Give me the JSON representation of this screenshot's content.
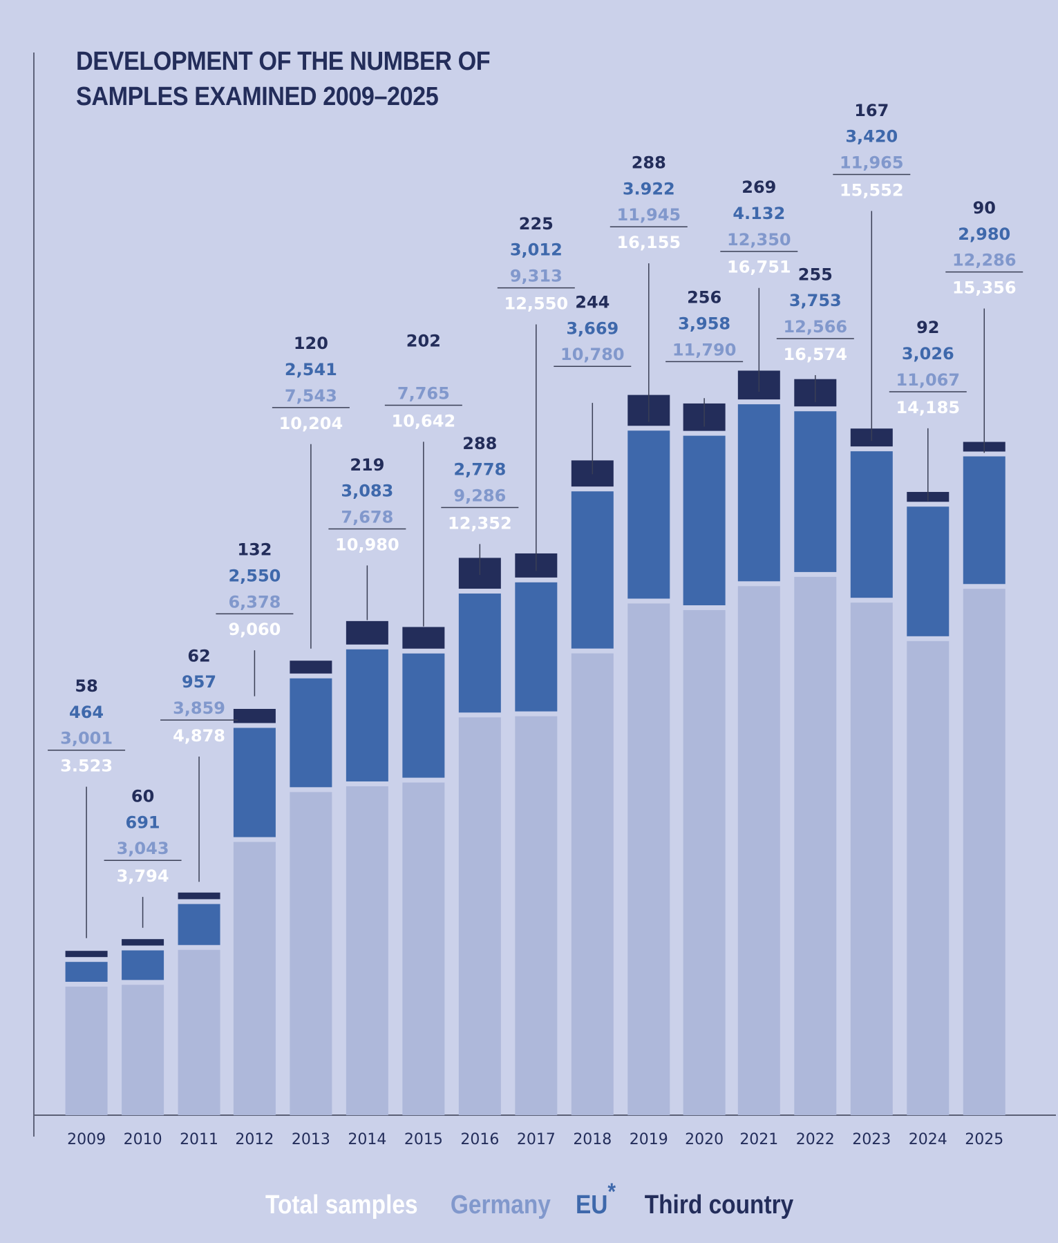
{
  "title_lines": [
    "DEVELOPMENT OF THE NUMBER OF",
    "SAMPLES EXAMINED 2009–2025"
  ],
  "legend": {
    "total": "Total samples",
    "germany": "Germany",
    "eu": "EU",
    "eu_marker": "*",
    "third": "Third country"
  },
  "colors": {
    "background": "#cbd1ea",
    "third_country": "#232d5a",
    "eu": "#3e68ab",
    "germany_bar": "#aeb8da",
    "germany_label": "#8198cc",
    "total_label": "#ffffff"
  },
  "chart_data": {
    "type": "bar",
    "stacked": true,
    "title": "DEVELOPMENT OF THE NUMBER OF SAMPLES EXAMINED 2009–2025",
    "xlabel": "",
    "ylabel": "",
    "grid": false,
    "legend_position": "bottom",
    "categories": [
      "2009",
      "2010",
      "2011",
      "2012",
      "2013",
      "2014",
      "2015",
      "2016",
      "2017",
      "2018",
      "2019",
      "2020",
      "2021",
      "2022",
      "2023",
      "2024",
      "2025"
    ],
    "series": [
      {
        "name": "Germany",
        "values": [
          3001,
          3043,
          3859,
          6378,
          7543,
          7678,
          7765,
          9286,
          9313,
          10780,
          11945,
          11790,
          12350,
          12566,
          11965,
          11067,
          12286
        ]
      },
      {
        "name": "EU",
        "values": [
          464,
          691,
          957,
          2550,
          2541,
          3083,
          null,
          2778,
          3012,
          3669,
          3922,
          3958,
          4132,
          3753,
          3420,
          3026,
          2980
        ]
      },
      {
        "name": "Third country",
        "values": [
          58,
          60,
          62,
          132,
          120,
          219,
          202,
          288,
          225,
          244,
          288,
          256,
          269,
          255,
          167,
          92,
          90
        ]
      }
    ],
    "totals": [
      3523,
      3794,
      4878,
      9060,
      10204,
      10980,
      10642,
      12352,
      12550,
      null,
      16155,
      null,
      16751,
      16574,
      15552,
      14185,
      15356
    ],
    "labels": [
      {
        "third": "58",
        "eu": "464",
        "germany": "3,001",
        "total": "3.523"
      },
      {
        "third": "60",
        "eu": "691",
        "germany": "3,043",
        "total": "3,794"
      },
      {
        "third": "62",
        "eu": "957",
        "germany": "3,859",
        "total": "4,878"
      },
      {
        "third": "132",
        "eu": "2,550",
        "germany": "6,378",
        "total": "9,060"
      },
      {
        "third": "120",
        "eu": "2,541",
        "germany": "7,543",
        "total": "10,204"
      },
      {
        "third": "219",
        "eu": "3,083",
        "germany": "7,678",
        "total": "10,980"
      },
      {
        "third": "202",
        "eu": "",
        "germany": "7,765",
        "total": "10,642"
      },
      {
        "third": "288",
        "eu": "2,778",
        "germany": "9,286",
        "total": "12,352"
      },
      {
        "third": "225",
        "eu": "3,012",
        "germany": "9,313",
        "total": "12,550"
      },
      {
        "third": "244",
        "eu": "3,669",
        "germany": "10,780",
        "total": ""
      },
      {
        "third": "288",
        "eu": "3.922",
        "germany": "11,945",
        "total": "16,155"
      },
      {
        "third": "256",
        "eu": "3,958",
        "germany": "11,790",
        "total": ""
      },
      {
        "third": "269",
        "eu": "4.132",
        "germany": "12,350",
        "total": "16,751"
      },
      {
        "third": "255",
        "eu": "3,753",
        "germany": "12,566",
        "total": "16,574"
      },
      {
        "third": "167",
        "eu": "3,420",
        "germany": "11,965",
        "total": "15,552"
      },
      {
        "third": "92",
        "eu": "3,026",
        "germany": "11,067",
        "total": "14,185"
      },
      {
        "third": "90",
        "eu": "2,980",
        "germany": "12,286",
        "total": "15,356"
      }
    ]
  }
}
